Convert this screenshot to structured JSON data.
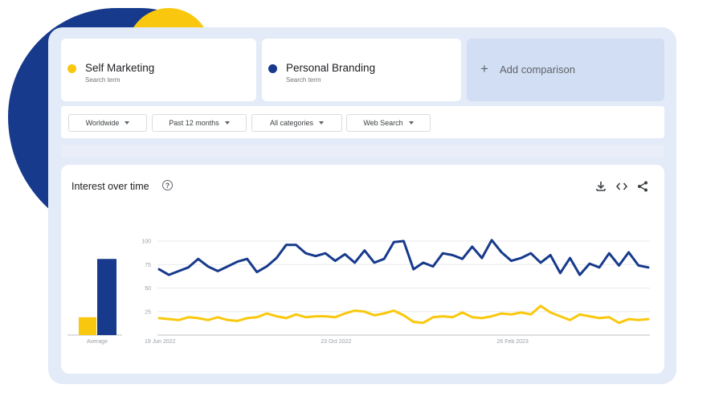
{
  "terms": [
    {
      "name": "Self Marketing",
      "sub": "Search term",
      "color": "#f9c80e"
    },
    {
      "name": "Personal Branding",
      "sub": "Search term",
      "color": "#173a8c"
    }
  ],
  "add_comparison": {
    "icon": "plus-icon",
    "label": "Add comparison"
  },
  "filters": [
    {
      "label": "Worldwide"
    },
    {
      "label": "Past 12 months"
    },
    {
      "label": "All categories"
    },
    {
      "label": "Web Search"
    }
  ],
  "chart_panel": {
    "title": "Interest over time",
    "help_icon": "help-circle-icon",
    "tools": [
      "download-icon",
      "embed-code-icon",
      "share-icon"
    ]
  },
  "chart_data": {
    "type": "line",
    "title": "Interest over time",
    "x_tick_labels": [
      "19 Jun 2022",
      "23 Oct 2022",
      "26 Feb 2023"
    ],
    "y_ticks": [
      25,
      50,
      75,
      100
    ],
    "ylim": [
      0,
      100
    ],
    "grid": true,
    "average_label": "Average",
    "averages": {
      "Self Marketing": 19,
      "Personal Branding": 81
    },
    "series": [
      {
        "name": "Personal Branding",
        "color": "#173a8c",
        "values": [
          70,
          64,
          68,
          72,
          81,
          73,
          68,
          73,
          78,
          81,
          67,
          73,
          82,
          96,
          96,
          87,
          84,
          87,
          79,
          86,
          77,
          90,
          77,
          81,
          99,
          100,
          70,
          77,
          73,
          87,
          85,
          81,
          94,
          82,
          101,
          88,
          79,
          82,
          87,
          77,
          85,
          66,
          82,
          64,
          76,
          72,
          87,
          74,
          88,
          74,
          72
        ]
      },
      {
        "name": "Self Marketing",
        "color": "#f9c80e",
        "values": [
          18,
          17,
          16,
          19,
          18,
          16,
          19,
          16,
          15,
          18,
          19,
          23,
          20,
          18,
          22,
          19,
          20,
          20,
          19,
          23,
          26,
          25,
          21,
          23,
          26,
          21,
          14,
          13,
          19,
          20,
          19,
          24,
          19,
          18,
          20,
          23,
          22,
          24,
          22,
          31,
          24,
          20,
          16,
          22,
          20,
          18,
          19,
          13,
          17,
          16,
          17
        ]
      }
    ]
  }
}
